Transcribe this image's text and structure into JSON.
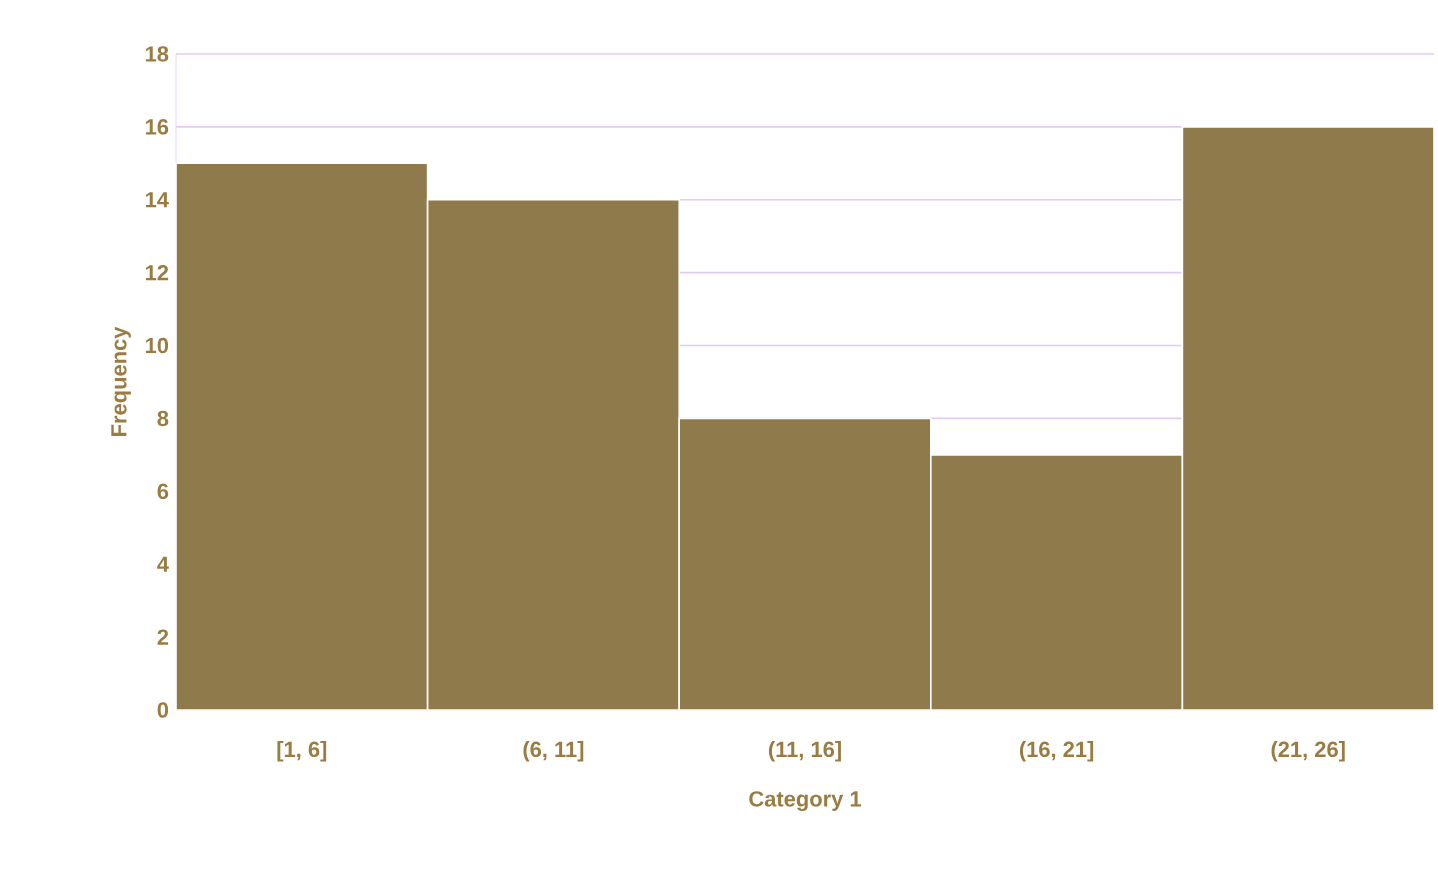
{
  "chart_data": {
    "type": "bar",
    "xlabel": "Category 1",
    "ylabel": "Frequency",
    "categories": [
      "[1, 6]",
      "(6, 11]",
      "(11, 16]",
      "(16, 21]",
      "(21, 26]"
    ],
    "values": [
      15,
      14,
      8,
      7,
      16
    ],
    "color": "#8f7a4b",
    "ylim": [
      0,
      18
    ],
    "yticks": [
      0,
      2,
      4,
      6,
      8,
      10,
      12,
      14,
      16,
      18
    ],
    "grid": "y"
  }
}
